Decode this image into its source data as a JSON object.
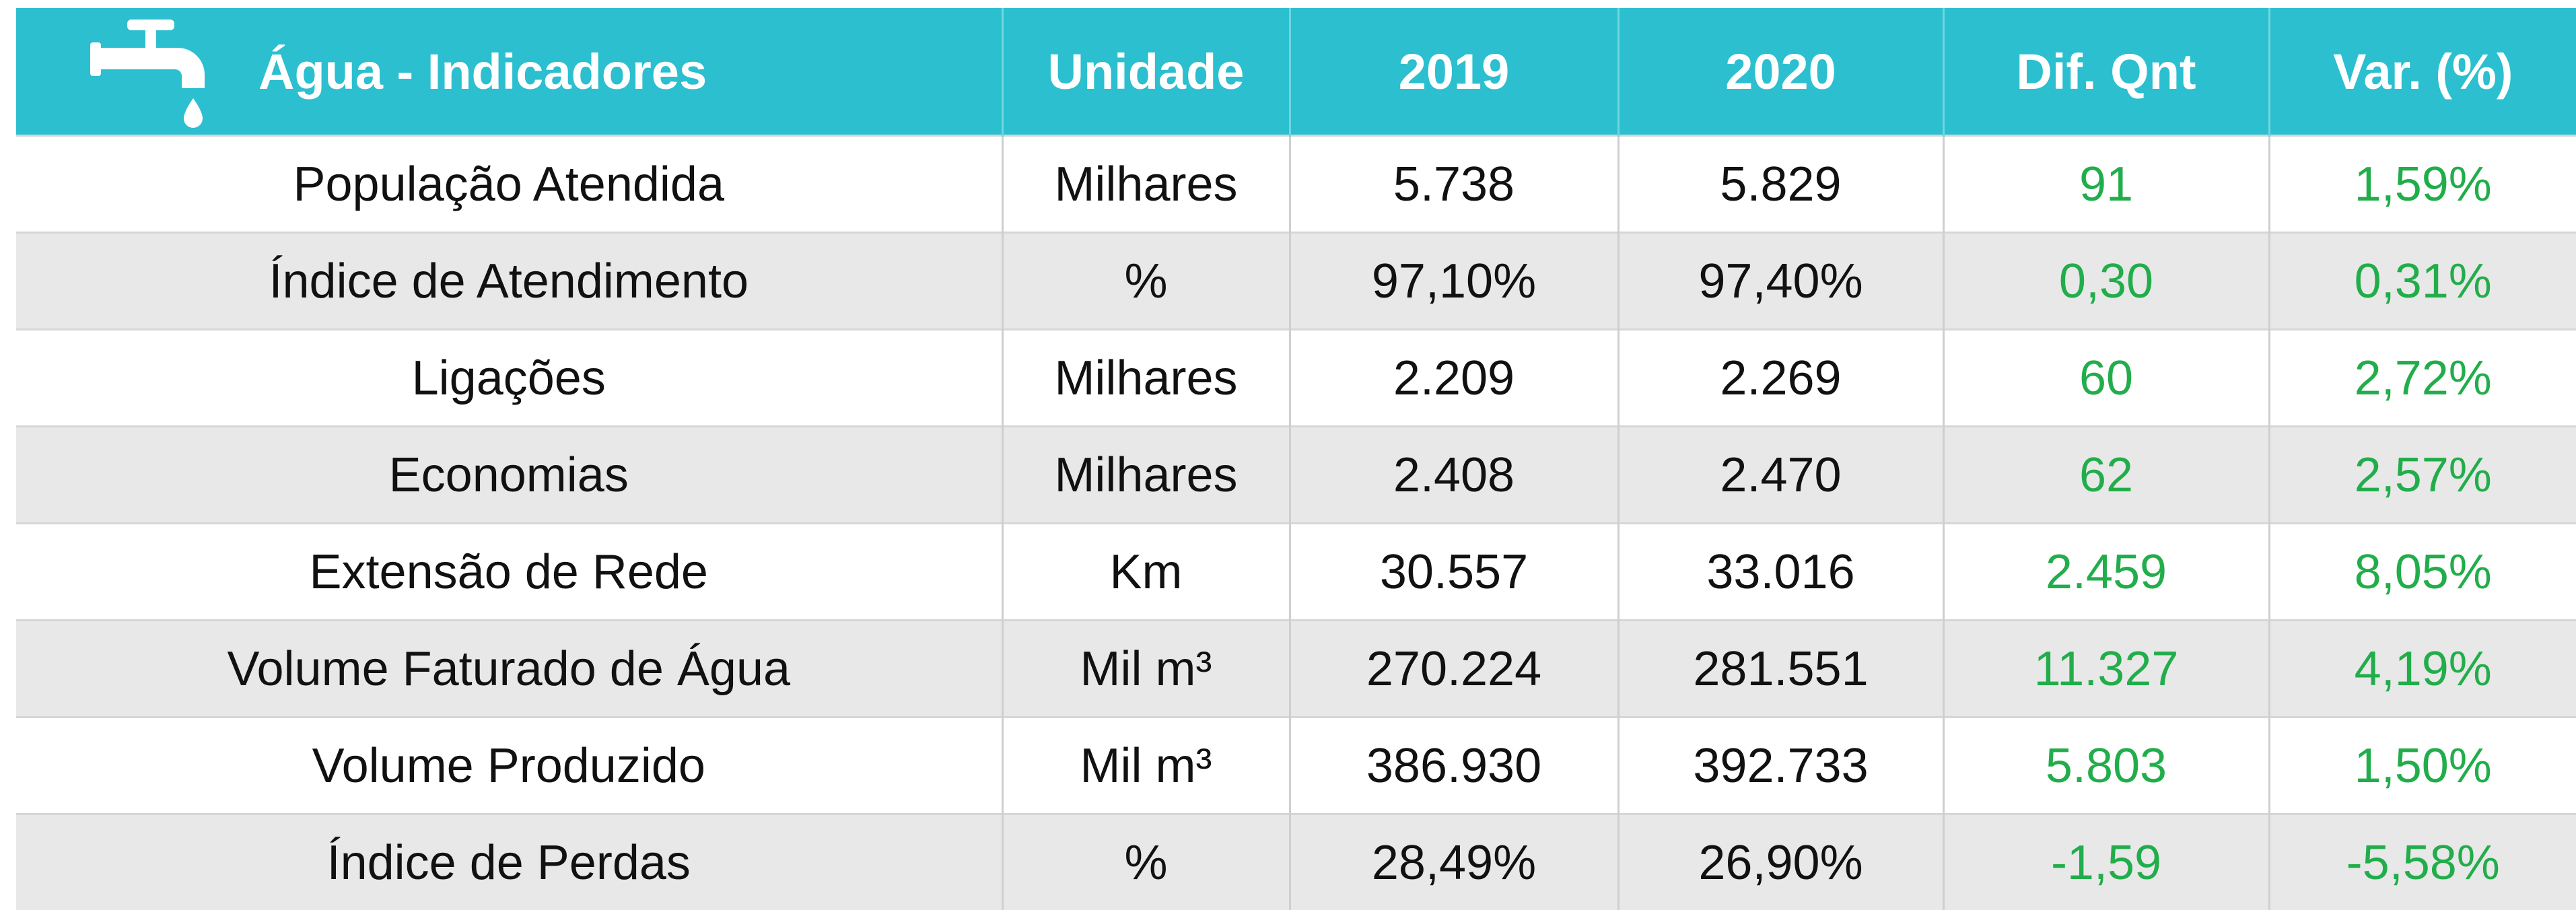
{
  "header": {
    "title": "Água - Indicadores",
    "columns": [
      "Unidade",
      "2019",
      "2020",
      "Dif. Qnt",
      "Var. (%)"
    ]
  },
  "table": {
    "rows": [
      [
        "População Atendida",
        "Milhares",
        "5.738",
        "5.829",
        "91",
        "1,59%"
      ],
      [
        "Índice de Atendimento",
        "%",
        "97,10%",
        "97,40%",
        "0,30",
        "0,31%"
      ],
      [
        "Ligações",
        "Milhares",
        "2.209",
        "2.269",
        "60",
        "2,72%"
      ],
      [
        "Economias",
        "Milhares",
        "2.408",
        "2.470",
        "62",
        "2,57%"
      ],
      [
        "Extensão de Rede",
        "Km",
        "30.557",
        "33.016",
        "2.459",
        "8,05%"
      ],
      [
        "Volume Faturado de Água",
        "Mil m³",
        "270.224",
        "281.551",
        "11.327",
        "4,19%"
      ],
      [
        "Volume Produzido",
        "Mil m³",
        "386.930",
        "392.733",
        "5.803",
        "1,50%"
      ],
      [
        "Índice de Perdas",
        "%",
        "28,49%",
        "26,90%",
        "-1,59",
        "-5,58%"
      ]
    ]
  }
}
